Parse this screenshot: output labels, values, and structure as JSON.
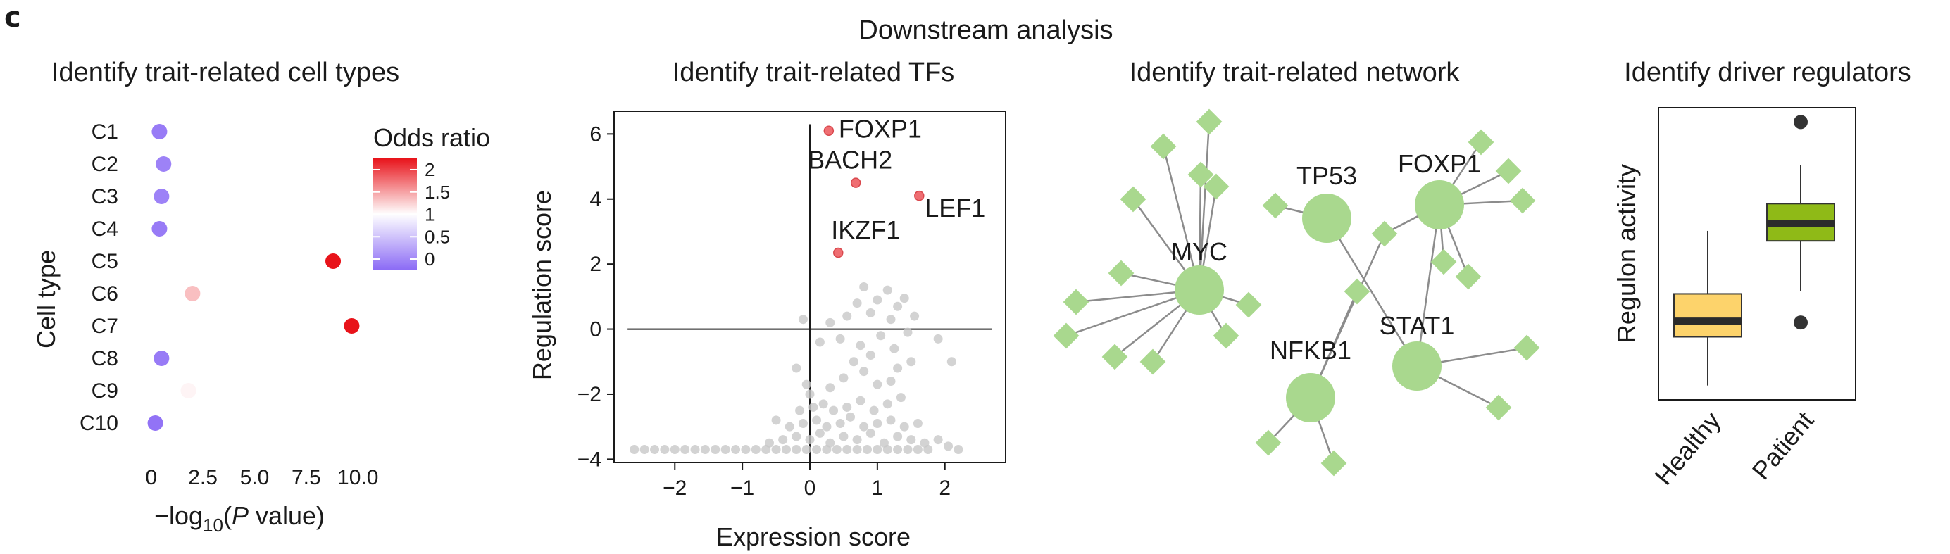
{
  "figure": {
    "panel_label": "c",
    "super_title": "Downstream analysis"
  },
  "chart_data": [
    {
      "type": "scatter",
      "title": "Identify trait-related cell types",
      "xlabel_parts": [
        "−log",
        "10",
        "(",
        "P",
        " value)"
      ],
      "ylabel": "Cell type",
      "categories": [
        "C1",
        "C2",
        "C3",
        "C4",
        "C5",
        "C6",
        "C7",
        "C8",
        "C9",
        "C10"
      ],
      "x": [
        0.4,
        0.6,
        0.5,
        0.4,
        8.8,
        2.0,
        9.7,
        0.5,
        1.8,
        0.2
      ],
      "odds_ratio": [
        0.1,
        0.15,
        0.15,
        0.1,
        2.3,
        1.3,
        2.3,
        0.1,
        1.05,
        0.05
      ],
      "xlim": [
        -0.5,
        10.4
      ],
      "xticks": [
        0,
        2.5,
        5.0,
        7.5,
        10.0
      ],
      "xtick_labels": [
        "0",
        "2.5",
        "5.0",
        "7.5",
        "10.0"
      ],
      "legend": {
        "title": "Odds ratio",
        "ticks": [
          2,
          1.5,
          1,
          0.5,
          0
        ],
        "tick_labels": [
          "2",
          "1.5",
          "1",
          "0.5",
          "0"
        ],
        "color_low": "#8c6cf5",
        "color_mid": "#ffffff",
        "color_high": "#e8131a"
      },
      "grid": false
    },
    {
      "type": "scatter",
      "title": "Identify trait-related TFs",
      "xlabel": "Expression score",
      "ylabel": "Regulation score",
      "xlim": [
        -2.9,
        2.9
      ],
      "ylim": [
        -4.1,
        6.7
      ],
      "xticks": [
        -2,
        -1,
        0,
        1,
        2
      ],
      "xtick_labels": [
        "−2",
        "−1",
        "0",
        "1",
        "2"
      ],
      "yticks": [
        -4,
        -2,
        0,
        2,
        4,
        6
      ],
      "ytick_labels": [
        "−4",
        "−2",
        "0",
        "2",
        "4",
        "6"
      ],
      "reference_lines": {
        "x": 0,
        "y": 0
      },
      "highlight_color": "#ef6e72",
      "background_color": "#c8c8c8",
      "highlighted": [
        {
          "label": "FOXP1",
          "x": 0.28,
          "y": 6.1
        },
        {
          "label": "BACH2",
          "x": 0.68,
          "y": 4.5
        },
        {
          "label": "LEF1",
          "x": 1.62,
          "y": 4.1
        },
        {
          "label": "IKZF1",
          "x": 0.42,
          "y": 2.35
        }
      ],
      "background_points": [
        [
          -2.6,
          -3.7
        ],
        [
          -2.45,
          -3.7
        ],
        [
          -2.3,
          -3.7
        ],
        [
          -2.15,
          -3.7
        ],
        [
          -2.0,
          -3.7
        ],
        [
          -1.85,
          -3.7
        ],
        [
          -1.7,
          -3.7
        ],
        [
          -1.55,
          -3.7
        ],
        [
          -1.4,
          -3.7
        ],
        [
          -1.25,
          -3.7
        ],
        [
          -1.1,
          -3.7
        ],
        [
          -0.95,
          -3.7
        ],
        [
          -0.8,
          -3.7
        ],
        [
          -0.65,
          -3.7
        ],
        [
          -0.5,
          -3.7
        ],
        [
          -0.35,
          -3.7
        ],
        [
          -0.2,
          -3.7
        ],
        [
          -0.05,
          -3.7
        ],
        [
          0.1,
          -3.7
        ],
        [
          0.25,
          -3.7
        ],
        [
          0.4,
          -3.7
        ],
        [
          0.55,
          -3.7
        ],
        [
          0.7,
          -3.7
        ],
        [
          0.85,
          -3.7
        ],
        [
          1.0,
          -3.7
        ],
        [
          1.15,
          -3.7
        ],
        [
          1.3,
          -3.7
        ],
        [
          1.45,
          -3.7
        ],
        [
          1.6,
          -3.7
        ],
        [
          1.75,
          -3.7
        ],
        [
          2.05,
          -3.6
        ],
        [
          2.2,
          -3.7
        ],
        [
          -0.6,
          -3.5
        ],
        [
          -0.4,
          -3.4
        ],
        [
          -0.2,
          -3.3
        ],
        [
          0.0,
          -3.4
        ],
        [
          0.15,
          -3.2
        ],
        [
          0.3,
          -3.5
        ],
        [
          0.5,
          -3.3
        ],
        [
          0.7,
          -3.4
        ],
        [
          0.9,
          -3.2
        ],
        [
          1.1,
          -3.5
        ],
        [
          1.3,
          -3.3
        ],
        [
          1.5,
          -3.4
        ],
        [
          1.7,
          -3.5
        ],
        [
          1.9,
          -3.4
        ],
        [
          -0.3,
          -3.0
        ],
        [
          -0.1,
          -2.9
        ],
        [
          0.1,
          -2.8
        ],
        [
          0.25,
          -3.0
        ],
        [
          0.45,
          -2.9
        ],
        [
          0.6,
          -2.7
        ],
        [
          0.8,
          -3.0
        ],
        [
          1.0,
          -2.9
        ],
        [
          1.2,
          -2.8
        ],
        [
          1.4,
          -3.0
        ],
        [
          1.6,
          -2.9
        ],
        [
          -0.5,
          -2.8
        ],
        [
          -0.15,
          -2.5
        ],
        [
          0.05,
          -2.4
        ],
        [
          0.2,
          -2.3
        ],
        [
          0.35,
          -2.5
        ],
        [
          0.55,
          -2.4
        ],
        [
          0.75,
          -2.2
        ],
        [
          0.95,
          -2.5
        ],
        [
          1.15,
          -2.3
        ],
        [
          1.35,
          -2.1
        ],
        [
          0.0,
          -2.0
        ],
        [
          -0.05,
          -1.7
        ],
        [
          0.3,
          -1.8
        ],
        [
          0.5,
          -1.5
        ],
        [
          0.8,
          -1.3
        ],
        [
          1.0,
          -1.7
        ],
        [
          1.2,
          -1.6
        ],
        [
          0.65,
          -1.0
        ],
        [
          0.9,
          -0.8
        ],
        [
          1.3,
          -1.2
        ],
        [
          1.5,
          -1.0
        ],
        [
          1.25,
          -0.6
        ],
        [
          0.45,
          -0.3
        ],
        [
          0.75,
          -0.5
        ],
        [
          1.05,
          -0.2
        ],
        [
          1.45,
          -0.1
        ],
        [
          1.9,
          -0.3
        ],
        [
          0.3,
          0.2
        ],
        [
          0.55,
          0.4
        ],
        [
          0.9,
          0.5
        ],
        [
          1.2,
          0.3
        ],
        [
          0.7,
          0.8
        ],
        [
          1.0,
          0.9
        ],
        [
          1.3,
          0.7
        ],
        [
          1.55,
          0.4
        ],
        [
          0.8,
          1.3
        ],
        [
          1.15,
          1.2
        ],
        [
          1.4,
          0.95
        ],
        [
          -0.1,
          0.3
        ],
        [
          0.15,
          -0.4
        ],
        [
          -0.2,
          -1.2
        ],
        [
          2.1,
          -1.0
        ]
      ],
      "grid": false
    },
    {
      "type": "network",
      "title": "Identify trait-related network",
      "hubs": [
        "MYC",
        "TP53",
        "FOXP1",
        "NFKB1",
        "STAT1"
      ],
      "hub_color": "#a9d88e",
      "leaf_color": "#a9d88e",
      "edge_color": "#8c8c8c"
    },
    {
      "type": "box",
      "title": "Identify driver regulators",
      "ylabel": "Regulon activity",
      "categories": [
        "Healthy",
        "Patient"
      ],
      "colors": [
        "#fdd36b",
        "#8fba17"
      ],
      "boxes": [
        {
          "whisker_low": 0.3,
          "q1": 2.0,
          "median": 2.55,
          "q3": 3.5,
          "whisker_high": 5.7,
          "outliers": []
        },
        {
          "whisker_low": 3.6,
          "q1": 5.35,
          "median": 5.95,
          "q3": 6.65,
          "whisker_high": 8.0,
          "outliers": [
            9.5,
            2.5
          ]
        }
      ],
      "ylim": [
        -0.2,
        10.0
      ],
      "grid": false
    }
  ]
}
